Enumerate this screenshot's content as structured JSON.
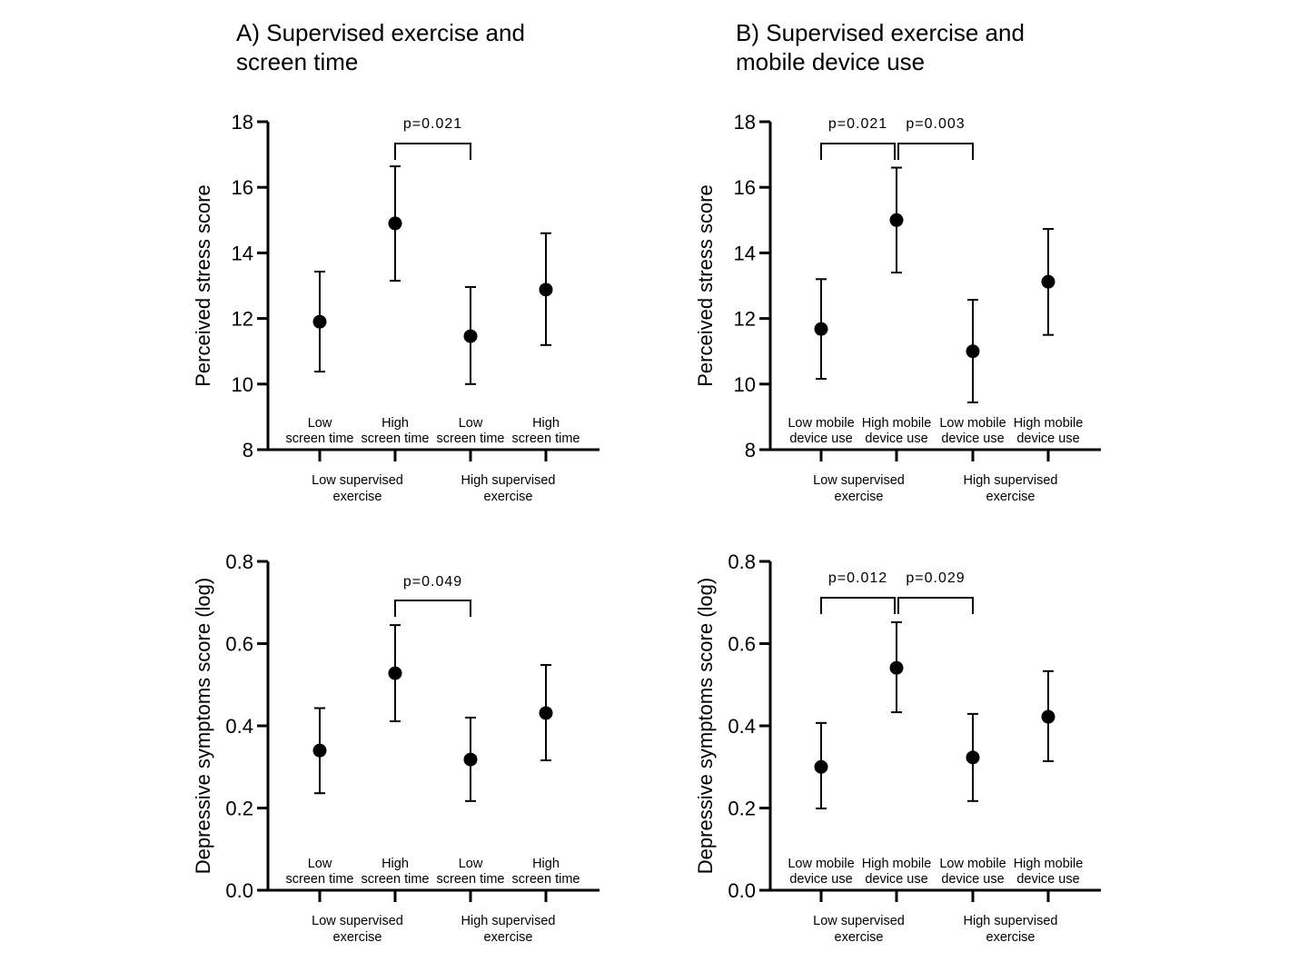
{
  "chart_data": [
    {
      "type": "scatter",
      "panel": "A",
      "title": [
        "A) Supervised exercise and",
        "screen time"
      ],
      "ylabel": "Perceived stress score",
      "ylim": [
        8,
        18
      ],
      "yticks": [
        8,
        10,
        12,
        14,
        16,
        18
      ],
      "categories": [
        [
          "Low",
          "screen time"
        ],
        [
          "High",
          "screen time"
        ],
        [
          "Low",
          "screen time"
        ],
        [
          "High",
          "screen time"
        ]
      ],
      "groups": [
        [
          "Low supervised",
          "exercise"
        ],
        [
          "High supervised",
          "exercise"
        ]
      ],
      "values": [
        11.9,
        14.9,
        11.46,
        12.88
      ],
      "error_upper": [
        13.43,
        16.64,
        12.96,
        14.6
      ],
      "error_lower": [
        10.38,
        13.15,
        10.0,
        11.19
      ],
      "annotations": [
        {
          "from": 1,
          "to": 2,
          "label": "p=0.021"
        }
      ],
      "grid": false
    },
    {
      "type": "scatter",
      "panel": "B",
      "title": [
        "B) Supervised exercise and",
        "mobile device use"
      ],
      "ylabel": "Perceived stress score",
      "ylim": [
        8,
        18
      ],
      "yticks": [
        8,
        10,
        12,
        14,
        16,
        18
      ],
      "categories": [
        [
          "Low mobile",
          "device use"
        ],
        [
          "High mobile",
          "device use"
        ],
        [
          "Low mobile",
          "device use"
        ],
        [
          "High mobile",
          "device use"
        ]
      ],
      "groups": [
        [
          "Low supervised",
          "exercise"
        ],
        [
          "High supervised",
          "exercise"
        ]
      ],
      "values": [
        11.68,
        15.0,
        11.0,
        13.12
      ],
      "error_upper": [
        13.2,
        16.6,
        12.57,
        14.73
      ],
      "error_lower": [
        10.16,
        13.4,
        9.44,
        11.5
      ],
      "annotations": [
        {
          "from": 0,
          "to": 1,
          "label": "p=0.021"
        },
        {
          "from": 1,
          "to": 2,
          "label": "p=0.003"
        }
      ],
      "grid": false
    },
    {
      "type": "scatter",
      "panel": "A",
      "ylabel": "Depressive symptoms score (log)",
      "ylim": [
        0.0,
        0.8
      ],
      "yticks": [
        "0.0",
        "0.2",
        "0.4",
        "0.6",
        "0.8"
      ],
      "categories": [
        [
          "Low",
          "screen time"
        ],
        [
          "High",
          "screen time"
        ],
        [
          "Low",
          "screen time"
        ],
        [
          "High",
          "screen time"
        ]
      ],
      "groups": [
        [
          "Low supervised",
          "exercise"
        ],
        [
          "High supervised",
          "exercise"
        ]
      ],
      "values": [
        0.34,
        0.528,
        0.318,
        0.431
      ],
      "error_upper": [
        0.443,
        0.645,
        0.42,
        0.548
      ],
      "error_lower": [
        0.236,
        0.411,
        0.217,
        0.316
      ],
      "annotations": [
        {
          "from": 1,
          "to": 2,
          "label": "p=0.049"
        }
      ],
      "grid": false
    },
    {
      "type": "scatter",
      "panel": "B",
      "ylabel": "Depressive symptoms score (log)",
      "ylim": [
        0.0,
        0.8
      ],
      "yticks": [
        "0.0",
        "0.2",
        "0.4",
        "0.6",
        "0.8"
      ],
      "categories": [
        [
          "Low mobile",
          "device use"
        ],
        [
          "High mobile",
          "device use"
        ],
        [
          "Low mobile",
          "device use"
        ],
        [
          "High mobile",
          "device use"
        ]
      ],
      "groups": [
        [
          "Low supervised",
          "exercise"
        ],
        [
          "High supervised",
          "exercise"
        ]
      ],
      "values": [
        0.3,
        0.541,
        0.323,
        0.422
      ],
      "error_upper": [
        0.407,
        0.652,
        0.429,
        0.533
      ],
      "error_lower": [
        0.199,
        0.433,
        0.217,
        0.314
      ],
      "annotations": [
        {
          "from": 0,
          "to": 1,
          "label": "p=0.012"
        },
        {
          "from": 1,
          "to": 2,
          "label": "p=0.029"
        }
      ],
      "grid": false
    }
  ]
}
